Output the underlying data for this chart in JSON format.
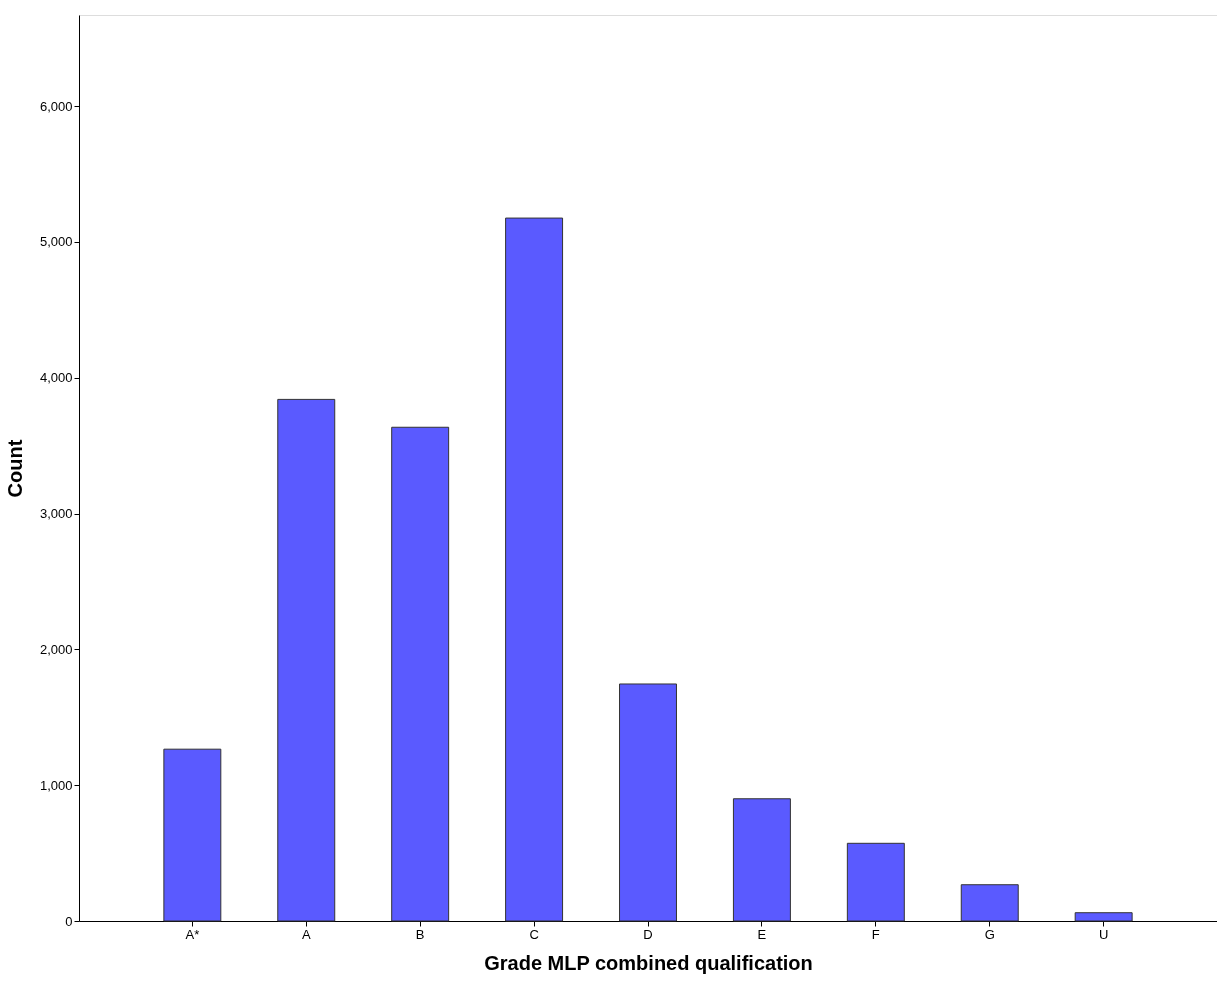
{
  "chart_data": {
    "type": "bar",
    "xlabel": "Grade MLP combined qualification",
    "ylabel": "Count",
    "categories": [
      "A*",
      "A",
      "B",
      "C",
      "D",
      "E",
      "F",
      "G",
      "U"
    ],
    "series": [
      {
        "color": "#5a5aff",
        "values": [
          1265,
          3840,
          3635,
          5175,
          1745,
          900,
          572,
          267,
          61
        ]
      }
    ],
    "ylim": [
      0,
      6670
    ],
    "yticks": [
      {
        "value": 0,
        "label": "0"
      },
      {
        "value": 1000,
        "label": "1,000"
      },
      {
        "value": 2000,
        "label": "2,000"
      },
      {
        "value": 3000,
        "label": "3,000"
      },
      {
        "value": 4000,
        "label": "4,000"
      },
      {
        "value": 5000,
        "label": "5,000"
      },
      {
        "value": 6000,
        "label": "6,000"
      }
    ],
    "grid": false,
    "legend": false
  }
}
